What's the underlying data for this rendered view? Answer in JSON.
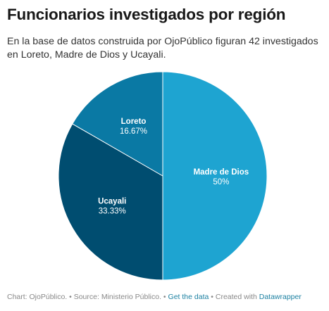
{
  "title": "Funcionarios investigados por región",
  "subtitle": "En la base de datos construida por OjoPúblico figuran 42 investigados en Loreto, Madre de Dios y Ucayali.",
  "chart_data": {
    "type": "pie",
    "slices": [
      {
        "label": "Madre de Dios",
        "value": 50,
        "display": "50%",
        "color": "#1ea4d1"
      },
      {
        "label": "Ucayali",
        "value": 33.33,
        "display": "33.33%",
        "color": "#004d70"
      },
      {
        "label": "Loreto",
        "value": 16.67,
        "display": "16.67%",
        "color": "#0a79a4"
      }
    ]
  },
  "footer": {
    "source_text": "Chart: OjoPúblico. • Source: Ministerio Público. •",
    "get_data": "Get the data",
    "created_with": "• Created with",
    "datawrapper": "Datawrapper"
  }
}
